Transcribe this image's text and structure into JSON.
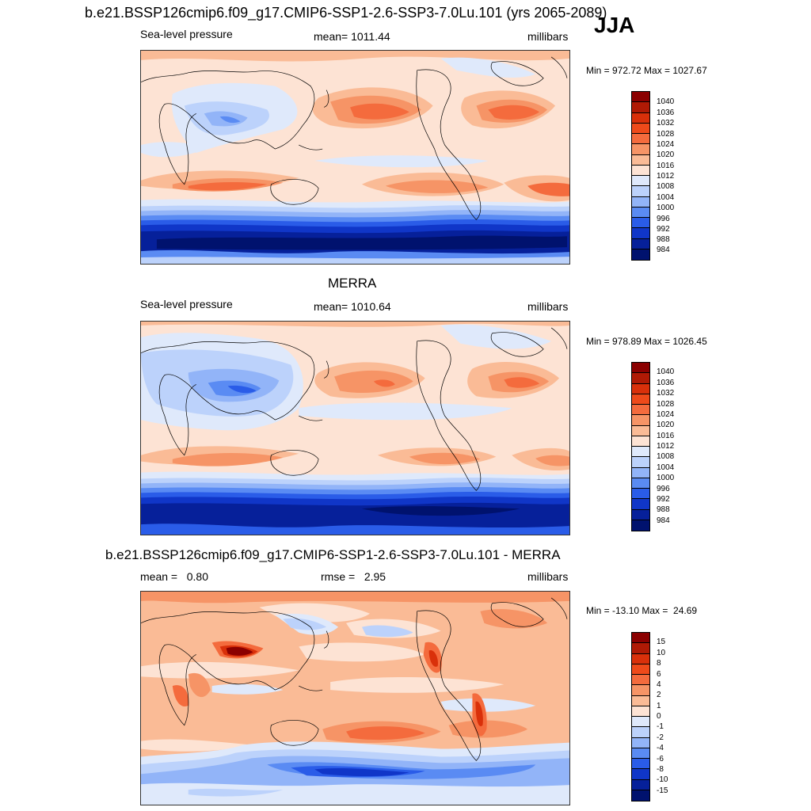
{
  "header": {
    "case_title": "b.e21.BSSP126cmip6.f09_g17.CMIP6-SSP1-2.6-SSP3-7.0Lu.101 (yrs 2065-2089)",
    "season": "JJA"
  },
  "panels": [
    {
      "title": "",
      "left_label": "Sea-level pressure",
      "center_label": "mean= 1011.44",
      "right_label": "millibars",
      "minmax": "Min = 972.72 Max = 1027.67",
      "colorbar": {
        "labels": [
          "1040",
          "1036",
          "1032",
          "1028",
          "1024",
          "1020",
          "1016",
          "1012",
          "1008",
          "1004",
          "1000",
          "996",
          "992",
          "988",
          "984"
        ],
        "colors": [
          "#8b0000",
          "#b01a05",
          "#d9300a",
          "#ee4a1a",
          "#f46b3d",
          "#f69466",
          "#fabb96",
          "#fde3d4",
          "#dfe9fb",
          "#bcd2fb",
          "#92b4f8",
          "#5a8bf3",
          "#2a5ce8",
          "#1036c8",
          "#06209a",
          "#00126e"
        ]
      }
    },
    {
      "title": "MERRA",
      "left_label": "Sea-level pressure",
      "center_label": "mean= 1010.64",
      "right_label": "millibars",
      "minmax": "Min = 978.89 Max = 1026.45",
      "colorbar": {
        "labels": [
          "1040",
          "1036",
          "1032",
          "1028",
          "1024",
          "1020",
          "1016",
          "1012",
          "1008",
          "1004",
          "1000",
          "996",
          "992",
          "988",
          "984"
        ],
        "colors": [
          "#8b0000",
          "#b01a05",
          "#d9300a",
          "#ee4a1a",
          "#f46b3d",
          "#f69466",
          "#fabb96",
          "#fde3d4",
          "#dfe9fb",
          "#bcd2fb",
          "#92b4f8",
          "#5a8bf3",
          "#2a5ce8",
          "#1036c8",
          "#06209a",
          "#00126e"
        ]
      }
    },
    {
      "title": "b.e21.BSSP126cmip6.f09_g17.CMIP6-SSP1-2.6-SSP3-7.0Lu.101 - MERRA",
      "left_label": "mean =   0.80",
      "center_label": "rmse =   2.95",
      "right_label": "millibars",
      "minmax": "Min = -13.10 Max =  24.69",
      "colorbar": {
        "labels": [
          "15",
          "10",
          "8",
          "6",
          "4",
          "2",
          "1",
          "0",
          "-1",
          "-2",
          "-4",
          "-6",
          "-8",
          "-10",
          "-15"
        ],
        "colors": [
          "#8b0000",
          "#b01a05",
          "#d9300a",
          "#ee4a1a",
          "#f46b3d",
          "#f69466",
          "#fabb96",
          "#fde3d4",
          "#dfe9fb",
          "#bcd2fb",
          "#92b4f8",
          "#5a8bf3",
          "#2a5ce8",
          "#1036c8",
          "#06209a",
          "#00126e"
        ]
      }
    }
  ]
}
